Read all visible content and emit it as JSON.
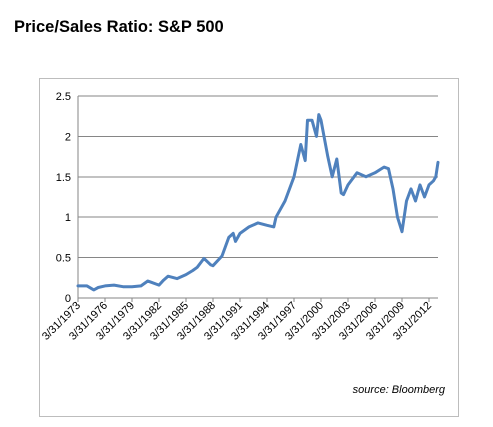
{
  "title": "Price/Sales Ratio: S&P 500",
  "source": "source: Bloomberg",
  "colors": {
    "series": "#4f81bd",
    "grid": "#868686",
    "frame": "#bdbdbd",
    "text": "#000000"
  },
  "chart_data": {
    "type": "line",
    "title": "Price/Sales Ratio: S&P 500",
    "xlabel": "",
    "ylabel": "",
    "ylim": [
      0,
      2.5
    ],
    "yticks": [
      "0",
      "0.5",
      "1",
      "1.5",
      "2",
      "2.5"
    ],
    "xticks": [
      "3/31/1973",
      "3/31/1976",
      "3/31/1979",
      "3/31/1982",
      "3/31/1985",
      "3/31/1988",
      "3/31/1991",
      "3/31/1994",
      "3/31/1997",
      "3/31/2000",
      "3/31/2003",
      "3/31/2006",
      "3/31/2009",
      "3/31/2012"
    ],
    "grid": true,
    "legend": "none",
    "series": [
      {
        "color": "#4f81bd",
        "points": [
          [
            "3/31/1973",
            0.15
          ],
          [
            "3/31/1974",
            0.15
          ],
          [
            "12/31/1974",
            0.1
          ],
          [
            "6/30/1975",
            0.13
          ],
          [
            "3/31/1976",
            0.15
          ],
          [
            "3/31/1977",
            0.16
          ],
          [
            "3/31/1978",
            0.14
          ],
          [
            "3/31/1979",
            0.14
          ],
          [
            "3/31/1980",
            0.15
          ],
          [
            "12/31/1980",
            0.21
          ],
          [
            "3/31/1981",
            0.2
          ],
          [
            "3/31/1982",
            0.16
          ],
          [
            "9/30/1982",
            0.22
          ],
          [
            "3/31/1983",
            0.27
          ],
          [
            "3/31/1984",
            0.24
          ],
          [
            "3/31/1985",
            0.29
          ],
          [
            "12/31/1985",
            0.34
          ],
          [
            "6/30/1986",
            0.38
          ],
          [
            "3/31/1987",
            0.49
          ],
          [
            "12/31/1987",
            0.41
          ],
          [
            "3/31/1988",
            0.4
          ],
          [
            "3/31/1989",
            0.52
          ],
          [
            "12/31/1989",
            0.75
          ],
          [
            "6/30/1990",
            0.8
          ],
          [
            "9/30/1990",
            0.7
          ],
          [
            "3/31/1991",
            0.8
          ],
          [
            "3/31/1992",
            0.88
          ],
          [
            "3/31/1993",
            0.93
          ],
          [
            "3/31/1994",
            0.9
          ],
          [
            "12/31/1994",
            0.88
          ],
          [
            "3/31/1995",
            1.0
          ],
          [
            "3/31/1996",
            1.2
          ],
          [
            "3/31/1997",
            1.5
          ],
          [
            "12/31/1997",
            1.9
          ],
          [
            "6/30/1998",
            1.7
          ],
          [
            "9/30/1998",
            2.2
          ],
          [
            "3/31/1999",
            2.2
          ],
          [
            "9/30/1999",
            2.0
          ],
          [
            "12/31/1999",
            2.27
          ],
          [
            "3/31/2000",
            2.2
          ],
          [
            "12/31/2000",
            1.75
          ],
          [
            "6/30/2001",
            1.5
          ],
          [
            "12/31/2001",
            1.72
          ],
          [
            "6/30/2002",
            1.3
          ],
          [
            "9/30/2002",
            1.28
          ],
          [
            "3/31/2003",
            1.4
          ],
          [
            "3/31/2004",
            1.55
          ],
          [
            "3/31/2005",
            1.5
          ],
          [
            "3/31/2006",
            1.55
          ],
          [
            "3/31/2007",
            1.62
          ],
          [
            "9/30/2007",
            1.6
          ],
          [
            "3/31/2008",
            1.35
          ],
          [
            "9/30/2008",
            1.0
          ],
          [
            "3/31/2009",
            0.82
          ],
          [
            "9/30/2009",
            1.2
          ],
          [
            "3/31/2010",
            1.35
          ],
          [
            "9/30/2010",
            1.2
          ],
          [
            "3/31/2011",
            1.4
          ],
          [
            "9/30/2011",
            1.25
          ],
          [
            "3/31/2012",
            1.4
          ],
          [
            "9/30/2012",
            1.45
          ],
          [
            "12/31/2012",
            1.5
          ],
          [
            "3/31/2013",
            1.68
          ]
        ]
      }
    ]
  }
}
